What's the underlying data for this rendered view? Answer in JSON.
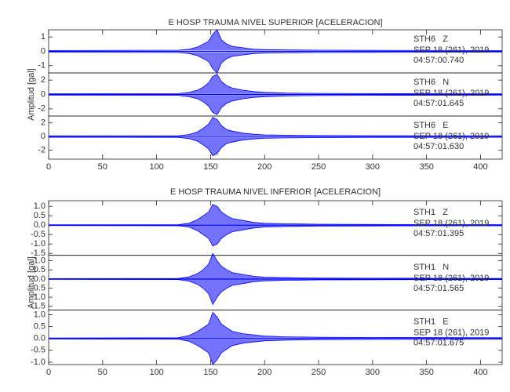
{
  "chart_data": [
    {
      "type": "seismogram",
      "title": "E HOSP TRAUMA NIVEL SUPERIOR [ACELERACION]",
      "ylabel": "Amplitud [gal]",
      "xlim": [
        0,
        420
      ],
      "xticks": [
        0,
        50,
        100,
        150,
        200,
        250,
        300,
        350,
        400
      ],
      "color": "#0000ff",
      "x": [
        0,
        120,
        130,
        138,
        143,
        148,
        152,
        156,
        160,
        165,
        170,
        180,
        190,
        200,
        220,
        250,
        300,
        420
      ],
      "panels": [
        {
          "station": "STH6   Z",
          "date": "SEP 18 (261), 2019",
          "time": "04:57:00.740",
          "ylim": [
            -1.5,
            1.5
          ],
          "yticks": [
            -1,
            0,
            1
          ],
          "values": [
            0.06,
            0.08,
            0.15,
            0.3,
            0.5,
            0.7,
            1.2,
            1.5,
            0.8,
            0.5,
            0.35,
            0.25,
            0.15,
            0.12,
            0.1,
            0.08,
            0.07,
            0.06
          ]
        },
        {
          "station": "STH6   N",
          "date": "SEP 18 (261), 2019",
          "time": "04:57:01.645",
          "ylim": [
            -3,
            3
          ],
          "yticks": [
            -2,
            0,
            2
          ],
          "values": [
            0.1,
            0.12,
            0.3,
            0.6,
            1.0,
            1.6,
            2.5,
            2.8,
            1.8,
            1.2,
            0.9,
            0.6,
            0.4,
            0.3,
            0.2,
            0.15,
            0.12,
            0.1
          ]
        },
        {
          "station": "STH6   E",
          "date": "SEP 18 (261), 2019",
          "time": "04:57:01.630",
          "ylim": [
            -3.3,
            3
          ],
          "yticks": [
            -2,
            0,
            2
          ],
          "values": [
            0.1,
            0.12,
            0.3,
            0.7,
            1.2,
            1.8,
            2.8,
            2.5,
            1.6,
            1.0,
            0.8,
            0.5,
            0.35,
            0.25,
            0.2,
            0.15,
            0.12,
            0.1
          ]
        }
      ]
    },
    {
      "type": "seismogram",
      "title": "E HOSP TRAUMA NIVEL INFERIOR [ACELERACION]",
      "ylabel": "Amplitud [gal]",
      "xlim": [
        0,
        420
      ],
      "xticks": [
        0,
        50,
        100,
        150,
        200,
        250,
        300,
        350,
        400
      ],
      "color": "#0000ff",
      "x": [
        0,
        120,
        130,
        138,
        143,
        148,
        152,
        156,
        160,
        165,
        170,
        180,
        190,
        200,
        220,
        250,
        300,
        420
      ],
      "panels": [
        {
          "station": "STH1   Z",
          "date": "SEP 18 (261), 2019",
          "time": "04:57:01.395",
          "ylim": [
            -1.6,
            1.3
          ],
          "yticks": [
            {
              "value": 1,
              "label": "1.0"
            },
            0.5,
            {
              "value": 0,
              "label": "0.0"
            },
            -0.5,
            {
              "value": -1,
              "label": "-1.0"
            },
            -1.5
          ],
          "values": [
            0.02,
            0.03,
            0.1,
            0.3,
            0.5,
            0.7,
            1.1,
            1.0,
            0.7,
            0.5,
            0.35,
            0.25,
            0.15,
            0.1,
            0.07,
            0.05,
            0.04,
            0.03
          ]
        },
        {
          "station": "STH1   N",
          "date": "SEP 18 (261), 2019",
          "time": "04:57:01.565",
          "ylim": [
            -1.7,
            1.3
          ],
          "yticks": [
            {
              "value": 1,
              "label": "1.0"
            },
            0.5,
            {
              "value": 0,
              "label": "0.0"
            },
            -0.5,
            {
              "value": -1,
              "label": "-1.0"
            },
            -1.5
          ],
          "values": [
            0.02,
            0.03,
            0.12,
            0.3,
            0.5,
            0.8,
            1.4,
            1.0,
            0.7,
            0.5,
            0.35,
            0.25,
            0.15,
            0.1,
            0.07,
            0.05,
            0.04,
            0.03
          ]
        },
        {
          "station": "STH1   E",
          "date": "SEP 18 (261), 2019",
          "time": "04:57:01.675",
          "ylim": [
            -1.1,
            1.2
          ],
          "yticks": [
            {
              "value": 1,
              "label": "1.0"
            },
            0.5,
            {
              "value": 0,
              "label": "0.0"
            },
            -0.5,
            {
              "value": -1,
              "label": "-1.0"
            }
          ],
          "values": [
            0.02,
            0.03,
            0.12,
            0.3,
            0.45,
            0.6,
            1.1,
            0.9,
            0.6,
            0.45,
            0.3,
            0.2,
            0.15,
            0.1,
            0.07,
            0.05,
            0.04,
            0.03
          ]
        }
      ]
    }
  ]
}
